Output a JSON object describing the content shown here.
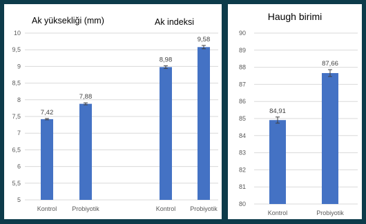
{
  "charts": [
    {
      "type": "bar",
      "title": "Ak yüksekliği (mm)",
      "categories": [
        "Kontrol",
        "Probiyotik"
      ],
      "values": [
        7.42,
        7.88
      ],
      "errors": [
        0.02,
        0.03
      ],
      "labels": [
        "7,42",
        "7,88"
      ],
      "ylim": [
        5,
        10
      ],
      "yticks": [
        "5",
        "5,5",
        "6",
        "6,5",
        "7",
        "7,5",
        "8",
        "8,5",
        "9",
        "9,5",
        "10"
      ],
      "bar_color": "#4472c4"
    },
    {
      "type": "bar",
      "title": "Ak indeksi",
      "categories": [
        "Kontrol",
        "Probiyotik"
      ],
      "values": [
        8.98,
        9.58
      ],
      "errors": [
        0.04,
        0.05
      ],
      "labels": [
        "8,98",
        "9,58"
      ],
      "ylim": [
        5,
        10
      ],
      "bar_color": "#4472c4"
    },
    {
      "type": "bar",
      "title": "Haugh birimi",
      "categories": [
        "Kontrol",
        "Probiyotik"
      ],
      "values": [
        84.91,
        87.66
      ],
      "errors": [
        0.18,
        0.2
      ],
      "labels": [
        "84,91",
        "87,66"
      ],
      "ylim": [
        80,
        90
      ],
      "yticks": [
        "80",
        "81",
        "82",
        "83",
        "84",
        "85",
        "86",
        "87",
        "88",
        "89",
        "90"
      ],
      "bar_color": "#4472c4"
    }
  ]
}
